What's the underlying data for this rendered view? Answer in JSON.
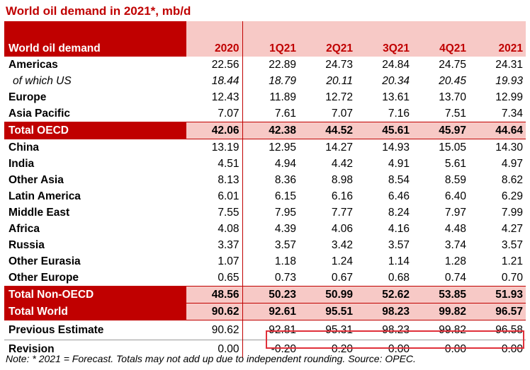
{
  "title": "World oil demand in 2021*, mb/d",
  "header": {
    "label": "World oil demand",
    "columns": [
      "2020",
      "1Q21",
      "2Q21",
      "3Q21",
      "4Q21",
      "2021"
    ]
  },
  "rows": [
    {
      "label": "Americas",
      "values": [
        "22.56",
        "22.89",
        "24.73",
        "24.84",
        "24.75",
        "24.31"
      ]
    },
    {
      "label": "of which US",
      "values": [
        "18.44",
        "18.79",
        "20.11",
        "20.34",
        "20.45",
        "19.93"
      ]
    },
    {
      "label": "Europe",
      "values": [
        "12.43",
        "11.89",
        "12.72",
        "13.61",
        "13.70",
        "12.99"
      ]
    },
    {
      "label": "Asia Pacific",
      "values": [
        "7.07",
        "7.61",
        "7.07",
        "7.16",
        "7.51",
        "7.34"
      ]
    },
    {
      "label": "Total OECD",
      "values": [
        "42.06",
        "42.38",
        "44.52",
        "45.61",
        "45.97",
        "44.64"
      ]
    },
    {
      "label": "China",
      "values": [
        "13.19",
        "12.95",
        "14.27",
        "14.93",
        "15.05",
        "14.30"
      ]
    },
    {
      "label": "India",
      "values": [
        "4.51",
        "4.94",
        "4.42",
        "4.91",
        "5.61",
        "4.97"
      ]
    },
    {
      "label": "Other Asia",
      "values": [
        "8.13",
        "8.36",
        "8.98",
        "8.54",
        "8.59",
        "8.62"
      ]
    },
    {
      "label": "Latin America",
      "values": [
        "6.01",
        "6.15",
        "6.16",
        "6.46",
        "6.40",
        "6.29"
      ]
    },
    {
      "label": "Middle East",
      "values": [
        "7.55",
        "7.95",
        "7.77",
        "8.24",
        "7.97",
        "7.99"
      ]
    },
    {
      "label": "Africa",
      "values": [
        "4.08",
        "4.39",
        "4.06",
        "4.16",
        "4.48",
        "4.27"
      ]
    },
    {
      "label": "Russia",
      "values": [
        "3.37",
        "3.57",
        "3.42",
        "3.57",
        "3.74",
        "3.57"
      ]
    },
    {
      "label": "Other Eurasia",
      "values": [
        "1.07",
        "1.18",
        "1.24",
        "1.14",
        "1.28",
        "1.21"
      ]
    },
    {
      "label": "Other Europe",
      "values": [
        "0.65",
        "0.73",
        "0.67",
        "0.68",
        "0.74",
        "0.70"
      ]
    },
    {
      "label": "Total Non-OECD",
      "values": [
        "48.56",
        "50.23",
        "50.99",
        "52.62",
        "53.85",
        "51.93"
      ]
    },
    {
      "label": "Total World",
      "values": [
        "90.62",
        "92.61",
        "95.51",
        "98.23",
        "99.82",
        "96.57"
      ]
    },
    {
      "label": "Previous Estimate",
      "values": [
        "90.62",
        "92.81",
        "95.31",
        "98.23",
        "99.82",
        "96.58"
      ]
    },
    {
      "label": "Revision",
      "values": [
        "0.00",
        "-0.20",
        "0.20",
        "0.00",
        "0.00",
        "0.00"
      ]
    }
  ],
  "note": "Note: * 2021 = Forecast. Totals may not add up due to independent rounding. Source: OPEC.",
  "colors": {
    "accent_red": "#c00000",
    "highlight_pink": "#f7c9c6",
    "revision_box": "#e0303a"
  }
}
